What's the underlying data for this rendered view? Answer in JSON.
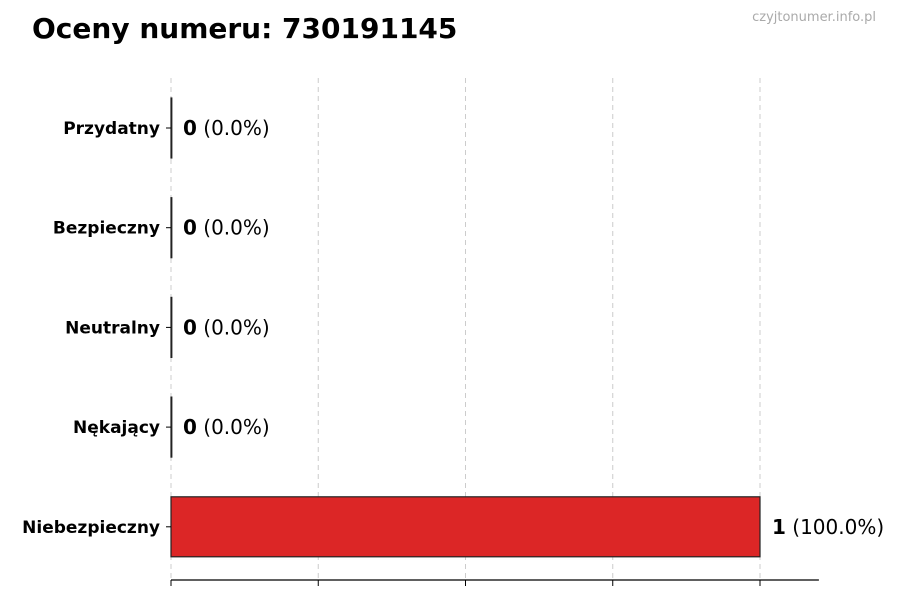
{
  "chart_data": {
    "type": "bar",
    "orientation": "horizontal",
    "title": "Oceny numeru: 730191145",
    "watermark": "czyjtonumer.info.pl",
    "categories": [
      "Przydatny",
      "Bezpieczny",
      "Neutralny",
      "Nękający",
      "Niebezpieczny"
    ],
    "values": [
      0,
      0,
      0,
      0,
      1
    ],
    "labels": [
      "(0.0%)",
      "(0.0%)",
      "(0.0%)",
      "(0.0%)",
      "(100.0%)"
    ],
    "colors": [
      "#2ca02c",
      "#2ca02c",
      "#7f7f7f",
      "#ff7f0e",
      "#dc2626"
    ],
    "xlim": [
      0,
      1.1
    ],
    "xticks": [
      0,
      0.25,
      0.5,
      0.75,
      1
    ],
    "grid": "x-dashed",
    "xlabel": "",
    "ylabel": ""
  }
}
